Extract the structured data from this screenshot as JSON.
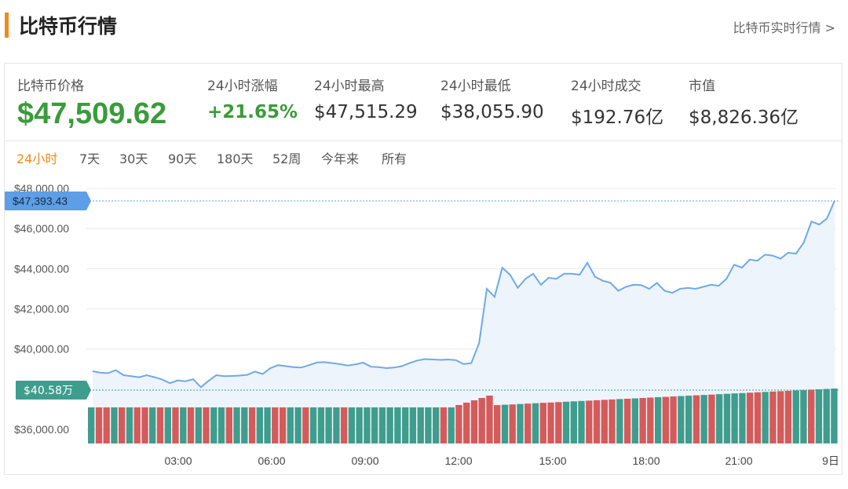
{
  "header": {
    "title": "比特币行情",
    "more_link": "比特币实时行情 >"
  },
  "stats": {
    "price_label": "比特币价格",
    "price_value": "$47,509.62",
    "change_label": "24小时涨幅",
    "change_value": "+21.65%",
    "high_label": "24小时最高",
    "high_value": "$47,515.29",
    "low_label": "24小时最低",
    "low_value": "$38,055.90",
    "volume_label": "24小时成交",
    "volume_value": "$192.76亿",
    "marketcap_label": "市值",
    "marketcap_value": "$8,826.36亿"
  },
  "tabs": [
    "24小时",
    "7天",
    "30天",
    "90天",
    "180天",
    "52周",
    "今年来",
    "所有"
  ],
  "active_tab": 0,
  "colors": {
    "accent": "#f08a1c",
    "price_up": "#3a9b3a",
    "line": "#6ea9e8",
    "area": "#eef4fc",
    "bar_green": "#3f9d8e",
    "bar_red": "#d45b5b",
    "price_marker": "#5d9ee6",
    "volume_marker": "#3f9d8e"
  },
  "chart_data": {
    "type": "line",
    "y_ticks": [
      "$36,000.00",
      "$40,000.00",
      "$42,000.00",
      "$44,000.00",
      "$46,000.00",
      "$48,000.00"
    ],
    "x_ticks": [
      "03:00",
      "06:00",
      "09:00",
      "12:00",
      "15:00",
      "18:00",
      "21:00",
      "9日"
    ],
    "ylim": [
      35300,
      48000
    ],
    "grid": true,
    "price_marker": "$47,393.43",
    "volume_marker": "$40.58万",
    "series": [
      {
        "values": [
          38900,
          38820,
          38800,
          38950,
          38700,
          38650,
          38600,
          38700,
          38600,
          38480,
          38300,
          38440,
          38400,
          38500,
          38100,
          38420,
          38700,
          38650,
          38660,
          38680,
          38720,
          38880,
          38760,
          39050,
          39200,
          39150,
          39100,
          39080,
          39200,
          39330,
          39350,
          39300,
          39250,
          39180,
          39240,
          39320,
          39120,
          39100,
          39050,
          39080,
          39150,
          39300,
          39430,
          39500,
          39480,
          39460,
          39480,
          39450,
          39250,
          39300,
          40300,
          43000,
          42600,
          44050,
          43700,
          43050,
          43500,
          43750,
          43200,
          43550,
          43500,
          43750,
          43750,
          43700,
          44300,
          43600,
          43400,
          43300,
          42900,
          43100,
          43200,
          43180,
          43000,
          43300,
          42900,
          42800,
          43000,
          43050,
          43000,
          43100,
          43200,
          43150,
          43500,
          44200,
          44050,
          44450,
          44400,
          44700,
          44650,
          44500,
          44800,
          44750,
          45300,
          46350,
          46200,
          46500,
          47393
        ]
      }
    ],
    "volume": {
      "colors": [
        "g",
        "r",
        "r",
        "g",
        "r",
        "g",
        "r",
        "r",
        "g",
        "r",
        "g",
        "r",
        "g",
        "r",
        "g",
        "r",
        "g",
        "g",
        "r",
        "g",
        "g",
        "r",
        "g",
        "g",
        "r",
        "r",
        "g",
        "g",
        "r",
        "g",
        "g",
        "g",
        "g",
        "r",
        "g",
        "g",
        "g",
        "g",
        "g",
        "g",
        "g",
        "g",
        "g",
        "g",
        "g",
        "g",
        "r",
        "g",
        "r",
        "r",
        "r",
        "r",
        "r",
        "r",
        "g",
        "r",
        "g",
        "r",
        "g",
        "r",
        "r",
        "r",
        "g",
        "g",
        "g",
        "r",
        "r",
        "r",
        "r",
        "g",
        "r",
        "g",
        "r",
        "r",
        "g",
        "r",
        "r",
        "g",
        "g",
        "r",
        "g",
        "r",
        "g",
        "g",
        "g",
        "g",
        "r",
        "r",
        "g",
        "r",
        "r",
        "r",
        "g",
        "g",
        "r",
        "g",
        "g",
        "g"
      ]
    }
  }
}
